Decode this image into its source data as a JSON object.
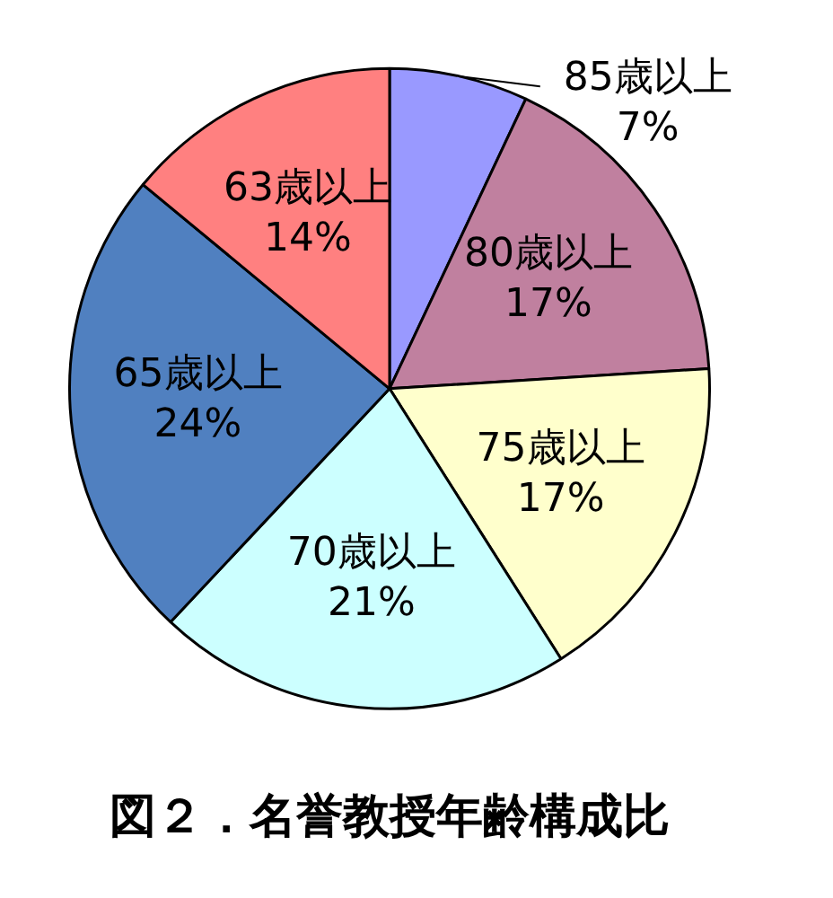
{
  "chart_data": {
    "type": "pie",
    "title": "図２．名誉教授年齢構成比",
    "categories": [
      "85歳以上",
      "80歳以上",
      "75歳以上",
      "70歳以上",
      "65歳以上",
      "63歳以上"
    ],
    "values": [
      7,
      17,
      17,
      21,
      24,
      14
    ],
    "value_labels": [
      "7%",
      "17%",
      "17%",
      "21%",
      "24%",
      "14%"
    ],
    "colors": [
      "#9999ff",
      "#c0809f",
      "#ffffcc",
      "#ccffff",
      "#5080c0",
      "#ff8080"
    ],
    "legend": false
  }
}
